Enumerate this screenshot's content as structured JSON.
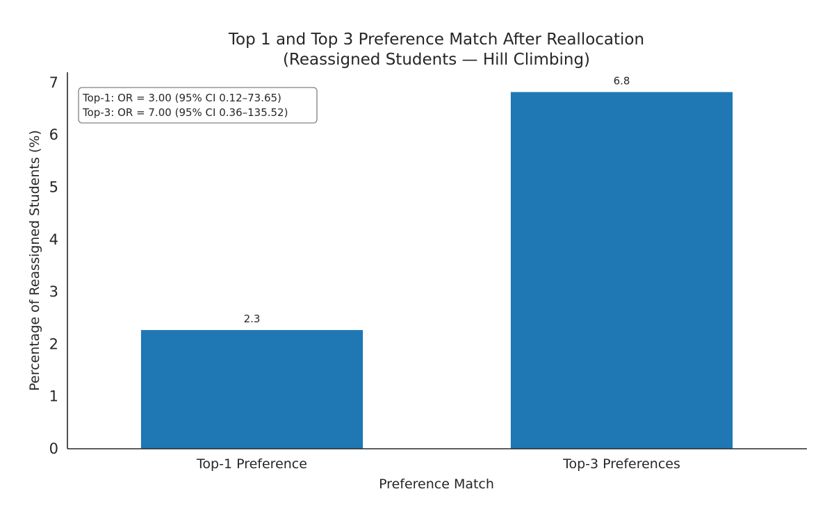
{
  "chart_data": {
    "type": "bar",
    "title_line1": "Top 1 and Top 3 Preference Match After Reallocation",
    "title_line2": "(Reassigned Students — Hill Climbing)",
    "xlabel": "Preference Match",
    "ylabel": "Percentage of Reassigned Students (%)",
    "categories": [
      "Top-1 Preference",
      "Top-3 Preferences"
    ],
    "values": [
      2.27,
      6.82
    ],
    "value_labels": [
      "2.3",
      "6.8"
    ],
    "ylim": [
      0,
      7.2
    ],
    "yticks": [
      "0",
      "1",
      "2",
      "3",
      "4",
      "5",
      "6",
      "7"
    ],
    "bar_color": "#1f77b4",
    "grid": false,
    "annotation": {
      "line1": "Top-1: OR = 3.00 (95% CI 0.12–73.65)",
      "line2": "Top-3: OR = 7.00 (95% CI 0.36–135.52)",
      "placement": "top-left"
    }
  }
}
